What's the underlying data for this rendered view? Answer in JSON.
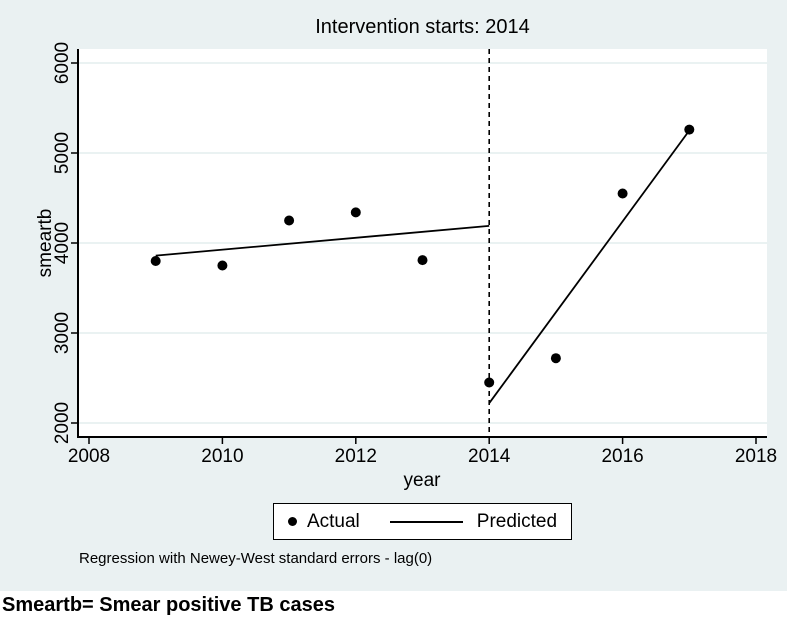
{
  "figure": {
    "title": "Intervention starts: 2014",
    "note": "Regression with Newey-West standard errors - lag(0)",
    "caption": "Smeartb= Smear positive TB cases"
  },
  "legend": {
    "items": [
      {
        "label": "Actual",
        "marker": "dot"
      },
      {
        "label": "Predicted",
        "marker": "line"
      }
    ]
  },
  "colors": {
    "background": "#eaf1f2",
    "plot_background": "#ffffff",
    "grid_line": "#dee9eb",
    "ink": "#000000"
  },
  "chart_data": {
    "type": "scatter",
    "title": "Intervention starts: 2014",
    "xlabel": "year",
    "ylabel": "smeartb",
    "xlim": [
      2008,
      2018
    ],
    "ylim": [
      2000,
      6000
    ],
    "x_ticks": [
      2008,
      2010,
      2012,
      2014,
      2016,
      2018
    ],
    "y_ticks": [
      2000,
      3000,
      4000,
      5000,
      6000
    ],
    "grid": true,
    "legend_position": "bottom-center",
    "intervention_line_x": 2014,
    "series": [
      {
        "name": "Actual",
        "type": "scatter",
        "x": [
          2009,
          2010,
          2011,
          2012,
          2013,
          2014,
          2015,
          2016,
          2017
        ],
        "y": [
          3800,
          3750,
          4250,
          4340,
          3810,
          2450,
          2720,
          4550,
          5260
        ]
      },
      {
        "name": "Predicted",
        "type": "line",
        "segments": [
          {
            "x": [
              2009,
              2014
            ],
            "y": [
              3860,
              4190
            ]
          },
          {
            "x": [
              2014,
              2017
            ],
            "y": [
              2220,
              5250
            ]
          }
        ]
      }
    ]
  }
}
